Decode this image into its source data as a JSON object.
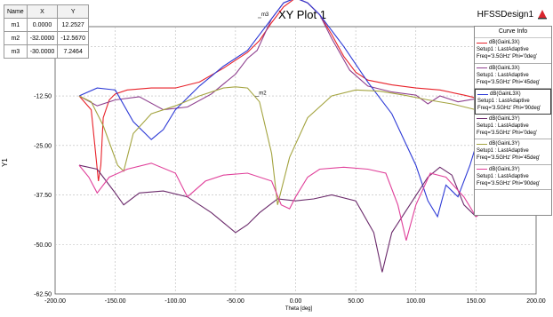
{
  "chart_data": {
    "type": "line",
    "title": "XY Plot 1",
    "xlabel": "Theta [deg]",
    "ylabel": "Y1",
    "xlim": [
      -200,
      200
    ],
    "ylim": [
      -62.5,
      5
    ],
    "xticks": [
      "-200.00",
      "-150.00",
      "-100.00",
      "-50.00",
      "0.00",
      "50.00",
      "100.00",
      "150.00",
      "200.00"
    ],
    "yticks": [
      "-0.00",
      "-12.50",
      "-25.00",
      "-37.50",
      "-50.00",
      "-62.50"
    ],
    "grid": true,
    "legend_position": "right",
    "series": [
      {
        "name": "dB(GainL3X)",
        "setup": "Setup1 : LastAdaptive",
        "freq": "Freq='3.5GHz' Phi='0deg'",
        "color": "#e8222a",
        "x": [
          -180,
          -170,
          -164,
          -162,
          -160,
          -155,
          -150,
          -140,
          -120,
          -100,
          -80,
          -60,
          -40,
          -30,
          -20,
          -10,
          0,
          10,
          20,
          30,
          40,
          50,
          60,
          80,
          100,
          120,
          140,
          150,
          155
        ],
        "y": [
          -12.5,
          -16,
          -34,
          -30,
          -18,
          -13.5,
          -12,
          -11,
          -10.5,
          -10.5,
          -9,
          -5.5,
          -1.5,
          1.5,
          6,
          10,
          12.25,
          11,
          8,
          3,
          -2.5,
          -6.5,
          -8.5,
          -9.7,
          -10.5,
          -11,
          -12.3,
          -13,
          -13.5
        ]
      },
      {
        "name": "dB(GainL3X)",
        "setup": "Setup1 : LastAdaptive",
        "freq": "Freq='3.5GHz' Phi='45deg'",
        "color": "#8e3f8e",
        "x": [
          -180,
          -165,
          -150,
          -130,
          -110,
          -90,
          -70,
          -50,
          -40,
          -32,
          -20,
          -10,
          0,
          10,
          20,
          30,
          45,
          60,
          80,
          100,
          110,
          120,
          135,
          150,
          155
        ],
        "y": [
          -12.5,
          -15,
          -13.5,
          -12.7,
          -16,
          -15.3,
          -12,
          -7,
          -3,
          -1,
          7,
          11,
          12.25,
          11,
          8,
          2,
          -6,
          -10,
          -11.5,
          -12.3,
          -14.5,
          -12.5,
          -14,
          -13.2,
          -13.5
        ]
      },
      {
        "name": "dB(GainL3X)",
        "setup": "Setup1 : LastAdaptive",
        "freq": "Freq='3.5GHz' Phi='90deg'",
        "color": "#2d3ad6",
        "x": [
          -180,
          -165,
          -150,
          -135,
          -120,
          -110,
          -100,
          -80,
          -60,
          -40,
          -20,
          -10,
          0,
          10,
          20,
          40,
          60,
          80,
          100,
          110,
          118,
          125,
          135,
          145,
          155
        ],
        "y": [
          -12.5,
          -10.5,
          -11,
          -19,
          -23.5,
          -21,
          -16,
          -10,
          -5,
          -1,
          7,
          11,
          12.25,
          11,
          8,
          0,
          -9,
          -17,
          -30,
          -39,
          -43,
          -35,
          -38,
          -30,
          -20
        ]
      },
      {
        "name": "dB(GainL3Y)",
        "setup": "Setup1 : LastAdaptive",
        "freq": "Freq='3.5GHz' Phi='0deg'",
        "color": "#6b2a6b",
        "x": [
          -180,
          -165,
          -150,
          -143,
          -130,
          -110,
          -90,
          -70,
          -50,
          -40,
          -30,
          -15,
          0,
          15,
          30,
          50,
          65,
          72,
          80,
          95,
          110,
          120,
          130,
          140,
          150,
          155
        ],
        "y": [
          -30,
          -31,
          -37,
          -40,
          -37,
          -36.5,
          -38,
          -42,
          -47,
          -45,
          -42,
          -38.5,
          -39,
          -38.5,
          -37.5,
          -39,
          -47,
          -57,
          -47,
          -40,
          -33,
          -30.5,
          -32.5,
          -40,
          -43,
          -42
        ]
      },
      {
        "name": "dB(GainL3Y)",
        "setup": "Setup1 : LastAdaptive",
        "freq": "Freq='3.5GHz' Phi='45deg'",
        "color": "#a4a440",
        "x": [
          -180,
          -170,
          -160,
          -148,
          -143,
          -135,
          -120,
          -100,
          -80,
          -60,
          -50,
          -40,
          -30,
          -20,
          -15,
          -5,
          10,
          30,
          50,
          70,
          90,
          110,
          130,
          150,
          155
        ],
        "y": [
          -12.5,
          -14,
          -20,
          -30,
          -31.5,
          -22,
          -17,
          -15,
          -12.5,
          -10.5,
          -10.2,
          -10.5,
          -14,
          -27,
          -40,
          -28,
          -18,
          -12.5,
          -11,
          -11.3,
          -12.3,
          -13.5,
          -14.5,
          -16,
          -16.5
        ]
      },
      {
        "name": "dB(GainL3Y)",
        "setup": "Setup1 : LastAdaptive",
        "freq": "Freq='3.5GHz' Phi='90deg'",
        "color": "#e0409a",
        "x": [
          -180,
          -172,
          -165,
          -155,
          -140,
          -120,
          -100,
          -90,
          -75,
          -60,
          -40,
          -20,
          -12,
          -5,
          0,
          10,
          20,
          40,
          60,
          75,
          85,
          92,
          100,
          112,
          125,
          140,
          150,
          155
        ],
        "y": [
          -30,
          -33,
          -37,
          -33,
          -31,
          -29.5,
          -32,
          -38,
          -34,
          -32.5,
          -32,
          -34,
          -40,
          -41,
          -38,
          -33,
          -31,
          -30.5,
          -31,
          -32,
          -40,
          -49,
          -40,
          -32,
          -33,
          -38,
          -43,
          -42
        ]
      }
    ],
    "markers": {
      "headers": [
        "Name",
        "X",
        "Y"
      ],
      "rows": [
        [
          "m1",
          "0.0000",
          "12.2527"
        ],
        [
          "m2",
          "-32.0000",
          "-12.5670"
        ],
        [
          "m3",
          "-30.0000",
          "7.2464"
        ]
      ],
      "labels": [
        {
          "name": "m1",
          "x": 0,
          "y": 12.2527
        },
        {
          "name": "m3",
          "x": -30,
          "y": 7.2464
        },
        {
          "name": "m2",
          "x": -32,
          "y": -12.567
        }
      ]
    },
    "legend_title": "Curve Info"
  },
  "brand": {
    "label": "HFSSDesign1",
    "icon": "ansys-logo-icon"
  }
}
